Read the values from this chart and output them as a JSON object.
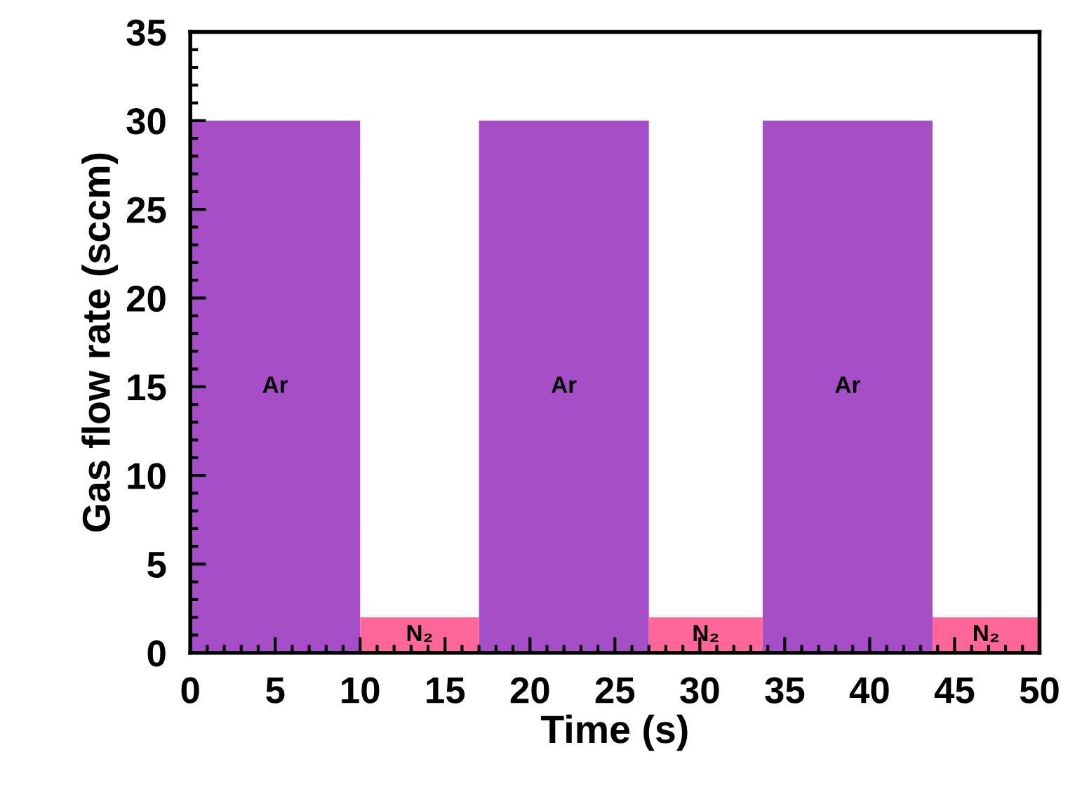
{
  "chart_data": {
    "type": "area",
    "xlabel": "Time (s)",
    "ylabel": "Gas flow rate (sccm)",
    "xlim": [
      0,
      50
    ],
    "xticks": [
      0,
      5,
      10,
      15,
      20,
      25,
      30,
      35,
      40,
      45,
      50
    ],
    "ylim": [
      0,
      35
    ],
    "yticks": [
      0,
      5,
      10,
      15,
      20,
      25,
      30,
      35
    ],
    "grid": false,
    "legend": false,
    "series": [
      {
        "name": "Ar",
        "color": "#a64ec8",
        "x": [
          0,
          10,
          10,
          17,
          17,
          27,
          27,
          33.7,
          33.7,
          43.7,
          43.7,
          50
        ],
        "values": [
          30,
          30,
          0,
          0,
          30,
          30,
          0,
          0,
          30,
          30,
          0,
          0
        ]
      },
      {
        "name": "N₂",
        "color": "#ff6699",
        "x": [
          0,
          10,
          10,
          17,
          17,
          27,
          27,
          33.7,
          33.7,
          43.7,
          43.7,
          50
        ],
        "values": [
          0,
          0,
          2,
          2,
          0,
          0,
          2,
          2,
          0,
          0,
          2,
          2
        ]
      }
    ]
  }
}
